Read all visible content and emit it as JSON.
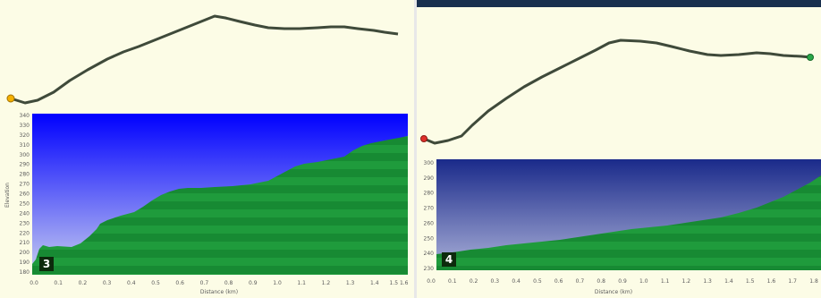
{
  "left": {
    "badge": "3",
    "x_axis_title": "Distance (km)",
    "y_axis_title": "Elevation",
    "x_ticks": [
      "0.0",
      "0.1",
      "0.2",
      "0.3",
      "0.4",
      "0.5",
      "0.6",
      "0.7",
      "0.8",
      "0.9",
      "1.0",
      "1.1",
      "1.2",
      "1.3",
      "1.4",
      "1.5 1.6"
    ],
    "y_ticks": [
      "340",
      "330",
      "320",
      "310",
      "300",
      "290",
      "280",
      "270",
      "260",
      "250",
      "240",
      "230",
      "220",
      "210",
      "200",
      "190",
      "180"
    ]
  },
  "right": {
    "badge": "4",
    "x_axis_title": "Distance (km)",
    "x_ticks": [
      "0.0",
      "0.1",
      "0.2",
      "0.3",
      "0.4",
      "0.5",
      "0.6",
      "0.7",
      "0.8",
      "0.9",
      "1.0",
      "1.1",
      "1.2",
      "1.3",
      "1.4",
      "1.5",
      "1.6",
      "1.7",
      "1.8"
    ],
    "y_ticks": [
      "300",
      "290",
      "280",
      "270",
      "260",
      "250",
      "240",
      "230"
    ]
  },
  "colors": {
    "panel_bg": "#fcfce6",
    "track": "#3f4a3a",
    "sky_top": "#0000ff",
    "terrain": "#1f9b3c",
    "terrain_stripe": "#178a33",
    "start_marker_left": "#f4b000",
    "start_marker_right": "#e0302a",
    "end_marker_right": "#2aa84a"
  }
}
